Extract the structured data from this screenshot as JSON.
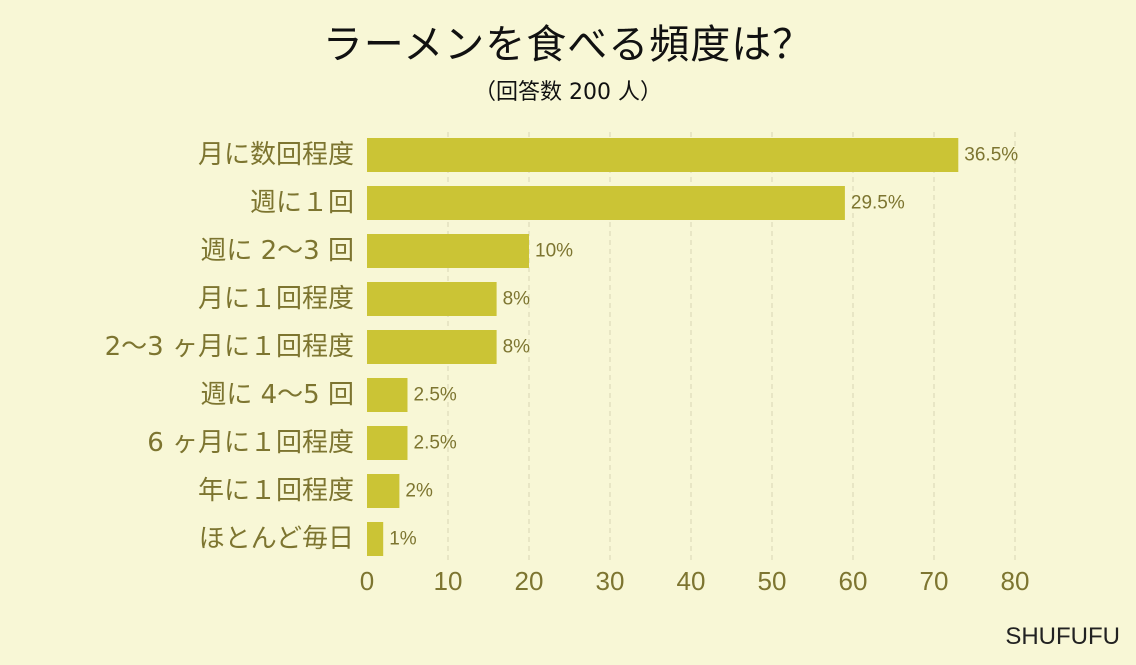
{
  "title": "ラーメンを食べる頻度は？",
  "subtitle": "（回答数 200 人）",
  "brand": "SHUFUFU",
  "colors": {
    "bar": "#cbc435",
    "label": "#7d7530",
    "grid": "#d8d6b4",
    "background": "#f8f7d6"
  },
  "chart_data": {
    "type": "bar",
    "orientation": "horizontal",
    "categories": [
      "月に数回程度",
      "週に１回",
      "週に 2〜3 回",
      "月に１回程度",
      "2〜3 ヶ月に１回程度",
      "週に 4〜5 回",
      "6 ヶ月に１回程度",
      "年に１回程度",
      "ほとんど毎日"
    ],
    "values": [
      73,
      59,
      20,
      16,
      16,
      5,
      5,
      4,
      2
    ],
    "value_labels": [
      "36.5%",
      "29.5%",
      "10%",
      "8%",
      "8%",
      "2.5%",
      "2.5%",
      "2%",
      "1%"
    ],
    "xlim": [
      0,
      80
    ],
    "xticks": [
      "0",
      "10",
      "20",
      "30",
      "40",
      "50",
      "60",
      "70",
      "80"
    ],
    "grid": true
  }
}
